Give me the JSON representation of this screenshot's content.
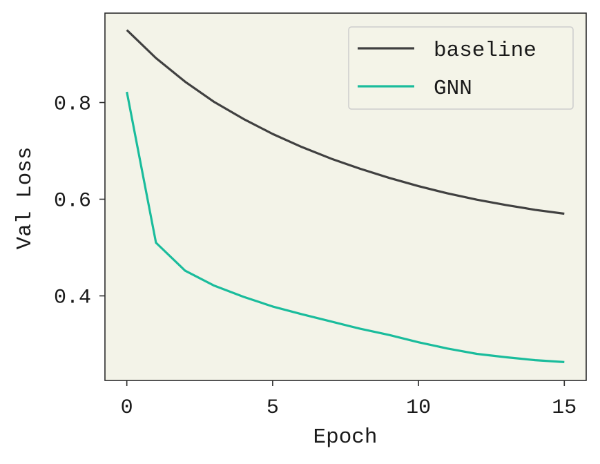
{
  "chart_data": {
    "type": "line",
    "title": "",
    "xlabel": "Epoch",
    "ylabel": "Val Loss",
    "xlim": [
      -0.75,
      15.75
    ],
    "ylim": [
      0.225,
      0.985
    ],
    "xticks": [
      0,
      5,
      10,
      15
    ],
    "yticks": [
      0.4,
      0.6,
      0.8
    ],
    "xtick_labels": [
      "0",
      "5",
      "10",
      "15"
    ],
    "ytick_labels": [
      "0.4",
      "0.6",
      "0.8"
    ],
    "grid": false,
    "legend_position": "top-right",
    "background_color": "#f3f3e8",
    "x": [
      0,
      1,
      2,
      3,
      4,
      5,
      6,
      7,
      8,
      9,
      10,
      11,
      12,
      13,
      14,
      15
    ],
    "series": [
      {
        "name": "baseline",
        "color": "#404040",
        "values": [
          0.95,
          0.892,
          0.843,
          0.801,
          0.766,
          0.735,
          0.708,
          0.684,
          0.663,
          0.644,
          0.627,
          0.612,
          0.599,
          0.588,
          0.578,
          0.57
        ]
      },
      {
        "name": "GNN",
        "color": "#1abc9c",
        "values": [
          0.822,
          0.51,
          0.452,
          0.421,
          0.398,
          0.378,
          0.362,
          0.347,
          0.332,
          0.319,
          0.304,
          0.291,
          0.28,
          0.273,
          0.267,
          0.263
        ]
      }
    ]
  }
}
